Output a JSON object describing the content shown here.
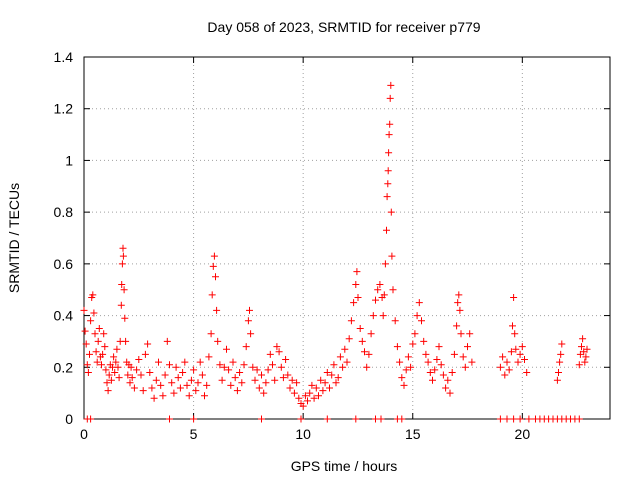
{
  "chart_data": {
    "type": "scatter",
    "title": "Day 058 of 2023, SRMTID for receiver p779",
    "xlabel": "GPS time / hours",
    "ylabel": "SRMTID / TECUs",
    "xlim": [
      0,
      24
    ],
    "ylim": [
      0,
      1.4
    ],
    "xticks": [
      0,
      5,
      10,
      15,
      20
    ],
    "xtick_labels": [
      "0",
      "5",
      "10",
      "15",
      "20"
    ],
    "yticks": [
      0,
      0.2,
      0.4,
      0.6,
      0.8,
      1,
      1.2,
      1.4
    ],
    "ytick_labels": [
      "0",
      "0.2",
      "0.4",
      "0.6",
      "0.8",
      "1",
      "1.2",
      "1.4"
    ],
    "grid": true,
    "marker": "+",
    "series": [
      {
        "name": "SRMTID",
        "color": "#ff0000",
        "points": [
          [
            0.0,
            0.42
          ],
          [
            0.05,
            0.34
          ],
          [
            0.1,
            0.29
          ],
          [
            0.15,
            0.21
          ],
          [
            0.2,
            0.18
          ],
          [
            0.25,
            0.25
          ],
          [
            0.3,
            0.38
          ],
          [
            0.35,
            0.47
          ],
          [
            0.4,
            0.48
          ],
          [
            0.45,
            0.41
          ],
          [
            0.5,
            0.33
          ],
          [
            0.55,
            0.26
          ],
          [
            0.6,
            0.22
          ],
          [
            0.65,
            0.3
          ],
          [
            0.7,
            0.35
          ],
          [
            0.75,
            0.24
          ],
          [
            0.8,
            0.21
          ],
          [
            0.85,
            0.25
          ],
          [
            0.9,
            0.33
          ],
          [
            0.95,
            0.28
          ],
          [
            1.0,
            0.19
          ],
          [
            1.05,
            0.14
          ],
          [
            1.1,
            0.11
          ],
          [
            1.15,
            0.17
          ],
          [
            1.2,
            0.21
          ],
          [
            1.25,
            0.15
          ],
          [
            1.3,
            0.2
          ],
          [
            1.35,
            0.24
          ],
          [
            1.4,
            0.18
          ],
          [
            1.45,
            0.22
          ],
          [
            1.5,
            0.27
          ],
          [
            1.55,
            0.2
          ],
          [
            1.6,
            0.16
          ],
          [
            1.65,
            0.3
          ],
          [
            1.7,
            0.44
          ],
          [
            1.72,
            0.52
          ],
          [
            1.75,
            0.6
          ],
          [
            1.78,
            0.66
          ],
          [
            1.8,
            0.63
          ],
          [
            1.83,
            0.5
          ],
          [
            1.86,
            0.39
          ],
          [
            1.9,
            0.3
          ],
          [
            1.95,
            0.22
          ],
          [
            2.0,
            0.17
          ],
          [
            2.05,
            0.21
          ],
          [
            2.1,
            0.14
          ],
          [
            2.15,
            0.2
          ],
          [
            2.2,
            0.16
          ],
          [
            2.3,
            0.12
          ],
          [
            2.4,
            0.19
          ],
          [
            2.5,
            0.23
          ],
          [
            2.6,
            0.17
          ],
          [
            2.7,
            0.11
          ],
          [
            2.8,
            0.25
          ],
          [
            2.9,
            0.29
          ],
          [
            3.0,
            0.18
          ],
          [
            3.1,
            0.12
          ],
          [
            3.2,
            0.08
          ],
          [
            3.3,
            0.15
          ],
          [
            3.4,
            0.22
          ],
          [
            3.5,
            0.13
          ],
          [
            3.6,
            0.09
          ],
          [
            3.7,
            0.17
          ],
          [
            3.8,
            0.3
          ],
          [
            3.9,
            0.21
          ],
          [
            4.0,
            0.14
          ],
          [
            4.1,
            0.1
          ],
          [
            4.2,
            0.2
          ],
          [
            4.3,
            0.16
          ],
          [
            4.4,
            0.12
          ],
          [
            4.5,
            0.18
          ],
          [
            4.6,
            0.22
          ],
          [
            4.7,
            0.13
          ],
          [
            4.8,
            0.09
          ],
          [
            4.9,
            0.15
          ],
          [
            5.0,
            0.19
          ],
          [
            5.1,
            0.11
          ],
          [
            5.2,
            0.14
          ],
          [
            5.3,
            0.22
          ],
          [
            5.4,
            0.17
          ],
          [
            5.5,
            0.09
          ],
          [
            5.6,
            0.13
          ],
          [
            5.7,
            0.24
          ],
          [
            5.8,
            0.33
          ],
          [
            5.85,
            0.48
          ],
          [
            5.9,
            0.59
          ],
          [
            5.95,
            0.63
          ],
          [
            6.0,
            0.55
          ],
          [
            6.05,
            0.42
          ],
          [
            6.1,
            0.3
          ],
          [
            6.2,
            0.21
          ],
          [
            6.3,
            0.15
          ],
          [
            6.4,
            0.2
          ],
          [
            6.5,
            0.27
          ],
          [
            6.6,
            0.19
          ],
          [
            6.7,
            0.13
          ],
          [
            6.8,
            0.22
          ],
          [
            6.9,
            0.16
          ],
          [
            7.0,
            0.11
          ],
          [
            7.1,
            0.18
          ],
          [
            7.2,
            0.14
          ],
          [
            7.3,
            0.21
          ],
          [
            7.4,
            0.28
          ],
          [
            7.5,
            0.38
          ],
          [
            7.55,
            0.42
          ],
          [
            7.6,
            0.33
          ],
          [
            7.7,
            0.2
          ],
          [
            7.8,
            0.15
          ],
          [
            7.9,
            0.19
          ],
          [
            8.0,
            0.12
          ],
          [
            8.1,
            0.17
          ],
          [
            8.2,
            0.1
          ],
          [
            8.3,
            0.14
          ],
          [
            8.4,
            0.19
          ],
          [
            8.5,
            0.25
          ],
          [
            8.6,
            0.21
          ],
          [
            8.7,
            0.15
          ],
          [
            8.8,
            0.28
          ],
          [
            8.9,
            0.26
          ],
          [
            9.0,
            0.2
          ],
          [
            9.1,
            0.16
          ],
          [
            9.2,
            0.23
          ],
          [
            9.3,
            0.17
          ],
          [
            9.4,
            0.12
          ],
          [
            9.5,
            0.15
          ],
          [
            9.6,
            0.1
          ],
          [
            9.7,
            0.14
          ],
          [
            9.8,
            0.08
          ],
          [
            9.9,
            0.06
          ],
          [
            10.0,
            0.05
          ],
          [
            10.1,
            0.09
          ],
          [
            10.2,
            0.07
          ],
          [
            10.3,
            0.1
          ],
          [
            10.4,
            0.13
          ],
          [
            10.5,
            0.08
          ],
          [
            10.6,
            0.12
          ],
          [
            10.7,
            0.09
          ],
          [
            10.8,
            0.15
          ],
          [
            10.9,
            0.11
          ],
          [
            11.0,
            0.14
          ],
          [
            11.1,
            0.18
          ],
          [
            11.2,
            0.12
          ],
          [
            11.3,
            0.17
          ],
          [
            11.4,
            0.21
          ],
          [
            11.5,
            0.14
          ],
          [
            11.6,
            0.16
          ],
          [
            11.7,
            0.24
          ],
          [
            11.8,
            0.2
          ],
          [
            11.9,
            0.27
          ],
          [
            12.0,
            0.22
          ],
          [
            12.1,
            0.31
          ],
          [
            12.2,
            0.38
          ],
          [
            12.3,
            0.45
          ],
          [
            12.4,
            0.52
          ],
          [
            12.45,
            0.57
          ],
          [
            12.5,
            0.47
          ],
          [
            12.6,
            0.35
          ],
          [
            12.7,
            0.3
          ],
          [
            12.8,
            0.26
          ],
          [
            12.9,
            0.2
          ],
          [
            13.0,
            0.25
          ],
          [
            13.1,
            0.33
          ],
          [
            13.2,
            0.4
          ],
          [
            13.3,
            0.46
          ],
          [
            13.4,
            0.5
          ],
          [
            13.5,
            0.52
          ],
          [
            13.6,
            0.47
          ],
          [
            13.65,
            0.4
          ],
          [
            13.7,
            0.48
          ],
          [
            13.75,
            0.6
          ],
          [
            13.8,
            0.73
          ],
          [
            13.83,
            0.86
          ],
          [
            13.86,
            0.91
          ],
          [
            13.88,
            0.96
          ],
          [
            13.9,
            1.03
          ],
          [
            13.92,
            1.1
          ],
          [
            13.95,
            1.14
          ],
          [
            13.97,
            1.24
          ],
          [
            14.0,
            1.29
          ],
          [
            14.02,
            0.8
          ],
          [
            14.05,
            0.63
          ],
          [
            14.1,
            0.5
          ],
          [
            14.2,
            0.38
          ],
          [
            14.3,
            0.28
          ],
          [
            14.4,
            0.22
          ],
          [
            14.5,
            0.16
          ],
          [
            14.6,
            0.13
          ],
          [
            14.7,
            0.19
          ],
          [
            14.8,
            0.24
          ],
          [
            14.9,
            0.2
          ],
          [
            15.0,
            0.29
          ],
          [
            15.1,
            0.33
          ],
          [
            15.2,
            0.4
          ],
          [
            15.3,
            0.45
          ],
          [
            15.4,
            0.38
          ],
          [
            15.5,
            0.3
          ],
          [
            15.6,
            0.25
          ],
          [
            15.7,
            0.22
          ],
          [
            15.8,
            0.18
          ],
          [
            15.9,
            0.15
          ],
          [
            16.0,
            0.19
          ],
          [
            16.1,
            0.23
          ],
          [
            16.2,
            0.28
          ],
          [
            16.3,
            0.21
          ],
          [
            16.4,
            0.17
          ],
          [
            16.5,
            0.12
          ],
          [
            16.6,
            0.15
          ],
          [
            16.7,
            0.1
          ],
          [
            16.8,
            0.18
          ],
          [
            16.9,
            0.25
          ],
          [
            17.0,
            0.36
          ],
          [
            17.05,
            0.45
          ],
          [
            17.1,
            0.48
          ],
          [
            17.15,
            0.42
          ],
          [
            17.2,
            0.33
          ],
          [
            17.3,
            0.24
          ],
          [
            17.4,
            0.2
          ],
          [
            17.5,
            0.28
          ],
          [
            17.6,
            0.33
          ],
          [
            17.7,
            0.22
          ],
          [
            19.0,
            0.2
          ],
          [
            19.1,
            0.24
          ],
          [
            19.2,
            0.17
          ],
          [
            19.3,
            0.22
          ],
          [
            19.4,
            0.19
          ],
          [
            19.5,
            0.26
          ],
          [
            19.55,
            0.36
          ],
          [
            19.6,
            0.47
          ],
          [
            19.65,
            0.33
          ],
          [
            19.7,
            0.27
          ],
          [
            19.8,
            0.22
          ],
          [
            19.9,
            0.25
          ],
          [
            20.0,
            0.28
          ],
          [
            20.1,
            0.23
          ],
          [
            20.2,
            0.18
          ],
          [
            21.6,
            0.15
          ],
          [
            21.65,
            0.18
          ],
          [
            21.7,
            0.22
          ],
          [
            21.75,
            0.25
          ],
          [
            21.8,
            0.29
          ],
          [
            22.6,
            0.21
          ],
          [
            22.65,
            0.25
          ],
          [
            22.7,
            0.28
          ],
          [
            22.75,
            0.31
          ],
          [
            22.8,
            0.26
          ],
          [
            22.85,
            0.22
          ],
          [
            22.9,
            0.24
          ],
          [
            22.95,
            0.27
          ]
        ],
        "zero_x": [
          0.15,
          0.3,
          3.9,
          5.0,
          8.1,
          9.9,
          11.1,
          12.4,
          13.3,
          13.55,
          14.3,
          14.5,
          19.0,
          19.3,
          19.6,
          19.9,
          20.3,
          20.6,
          20.8,
          21.0,
          21.2,
          21.4,
          21.6,
          21.8,
          22.0,
          22.2,
          22.4,
          22.6
        ]
      }
    ]
  }
}
